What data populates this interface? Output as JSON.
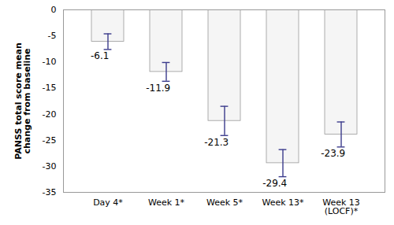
{
  "chart_data": {
    "type": "bar",
    "categories": [
      "Day 4*",
      "Week 1*",
      "Week 5*",
      "Week 13*",
      "Week 13\n(LOCF)*"
    ],
    "values": [
      -6.1,
      -11.9,
      -21.3,
      -29.4,
      -23.9
    ],
    "error_lower": [
      1.5,
      1.8,
      2.8,
      2.6,
      2.4
    ],
    "error_upper": [
      1.5,
      1.8,
      2.8,
      2.6,
      2.4
    ],
    "color": "#f5f5f5",
    "ylabel": "PANSS total score mean\nchange from baseline",
    "ylim": [
      -35,
      0
    ],
    "yticks": [
      0,
      -5,
      -10,
      -15,
      -20,
      -25,
      -30,
      -35
    ],
    "data_labels": true,
    "grid": false
  }
}
